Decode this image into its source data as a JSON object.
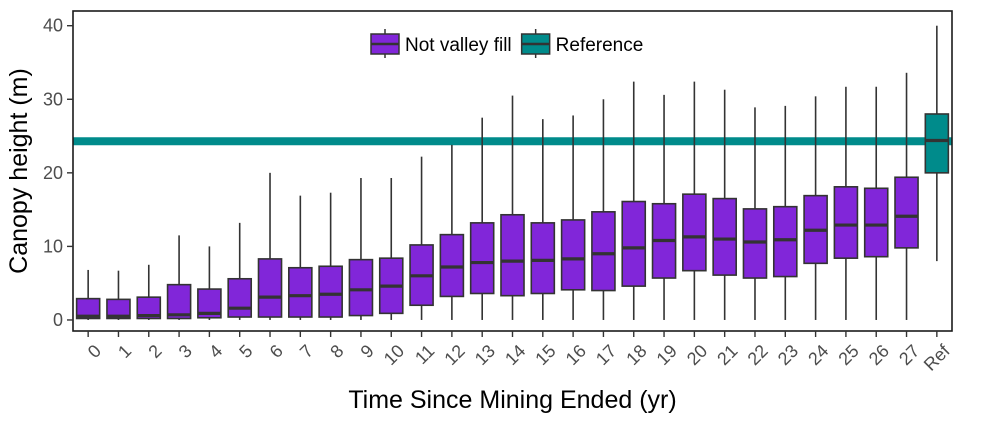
{
  "chart_data": {
    "type": "boxplot",
    "xlabel": "Time Since Mining Ended (yr)",
    "ylabel": "Canopy height (m)",
    "ylim": [
      -1.5,
      42
    ],
    "yticks": [
      0,
      10,
      20,
      30,
      40
    ],
    "grid": false,
    "legend_position": "top-center",
    "legend": [
      {
        "label": "Not valley fill",
        "color": "#8126D9"
      },
      {
        "label": "Reference",
        "color": "#008B8B"
      }
    ],
    "reference_line": {
      "y": 24.3,
      "color": "#008B8B"
    },
    "categories": [
      "0",
      "1",
      "2",
      "3",
      "4",
      "5",
      "6",
      "7",
      "8",
      "9",
      "10",
      "11",
      "12",
      "13",
      "14",
      "15",
      "16",
      "17",
      "18",
      "19",
      "20",
      "21",
      "22",
      "23",
      "24",
      "25",
      "26",
      "27",
      "Ref"
    ],
    "boxes": [
      {
        "min": 0,
        "q1": 0.2,
        "median": 0.5,
        "q3": 2.9,
        "max": 6.8,
        "group": "Not valley fill"
      },
      {
        "min": 0,
        "q1": 0.2,
        "median": 0.5,
        "q3": 2.8,
        "max": 6.7,
        "group": "Not valley fill"
      },
      {
        "min": 0,
        "q1": 0.2,
        "median": 0.6,
        "q3": 3.1,
        "max": 7.5,
        "group": "Not valley fill"
      },
      {
        "min": 0,
        "q1": 0.2,
        "median": 0.7,
        "q3": 4.8,
        "max": 11.5,
        "group": "Not valley fill"
      },
      {
        "min": 0,
        "q1": 0.3,
        "median": 0.9,
        "q3": 4.2,
        "max": 10.0,
        "group": "Not valley fill"
      },
      {
        "min": 0,
        "q1": 0.4,
        "median": 1.6,
        "q3": 5.6,
        "max": 13.2,
        "group": "Not valley fill"
      },
      {
        "min": 0,
        "q1": 0.4,
        "median": 3.1,
        "q3": 8.3,
        "max": 20.0,
        "group": "Not valley fill"
      },
      {
        "min": 0,
        "q1": 0.4,
        "median": 3.3,
        "q3": 7.1,
        "max": 16.9,
        "group": "Not valley fill"
      },
      {
        "min": 0,
        "q1": 0.4,
        "median": 3.5,
        "q3": 7.3,
        "max": 17.3,
        "group": "Not valley fill"
      },
      {
        "min": 0,
        "q1": 0.6,
        "median": 4.1,
        "q3": 8.2,
        "max": 19.3,
        "group": "Not valley fill"
      },
      {
        "min": 0,
        "q1": 0.9,
        "median": 4.6,
        "q3": 8.4,
        "max": 19.3,
        "group": "Not valley fill"
      },
      {
        "min": 0,
        "q1": 2.0,
        "median": 6.0,
        "q3": 10.2,
        "max": 22.2,
        "group": "Not valley fill"
      },
      {
        "min": 0,
        "q1": 3.2,
        "median": 7.2,
        "q3": 11.6,
        "max": 23.8,
        "group": "Not valley fill"
      },
      {
        "min": 0,
        "q1": 3.6,
        "median": 7.8,
        "q3": 13.2,
        "max": 27.5,
        "group": "Not valley fill"
      },
      {
        "min": 0,
        "q1": 3.3,
        "median": 8.0,
        "q3": 14.3,
        "max": 30.5,
        "group": "Not valley fill"
      },
      {
        "min": 0,
        "q1": 3.6,
        "median": 8.1,
        "q3": 13.2,
        "max": 27.3,
        "group": "Not valley fill"
      },
      {
        "min": 0,
        "q1": 4.1,
        "median": 8.3,
        "q3": 13.6,
        "max": 27.8,
        "group": "Not valley fill"
      },
      {
        "min": 0,
        "q1": 4.0,
        "median": 9.0,
        "q3": 14.7,
        "max": 30.0,
        "group": "Not valley fill"
      },
      {
        "min": 0,
        "q1": 4.6,
        "median": 9.8,
        "q3": 16.1,
        "max": 32.4,
        "group": "Not valley fill"
      },
      {
        "min": 0,
        "q1": 5.7,
        "median": 10.8,
        "q3": 15.8,
        "max": 30.6,
        "group": "Not valley fill"
      },
      {
        "min": 0,
        "q1": 6.7,
        "median": 11.3,
        "q3": 17.1,
        "max": 32.4,
        "group": "Not valley fill"
      },
      {
        "min": 0,
        "q1": 6.1,
        "median": 11.0,
        "q3": 16.5,
        "max": 31.3,
        "group": "Not valley fill"
      },
      {
        "min": 0,
        "q1": 5.7,
        "median": 10.6,
        "q3": 15.1,
        "max": 28.9,
        "group": "Not valley fill"
      },
      {
        "min": 0,
        "q1": 5.9,
        "median": 10.9,
        "q3": 15.4,
        "max": 29.1,
        "group": "Not valley fill"
      },
      {
        "min": 0,
        "q1": 7.7,
        "median": 12.2,
        "q3": 16.9,
        "max": 30.4,
        "group": "Not valley fill"
      },
      {
        "min": 0,
        "q1": 8.4,
        "median": 12.9,
        "q3": 18.1,
        "max": 31.7,
        "group": "Not valley fill"
      },
      {
        "min": 0,
        "q1": 8.6,
        "median": 12.9,
        "q3": 17.9,
        "max": 31.7,
        "group": "Not valley fill"
      },
      {
        "min": 0,
        "q1": 9.8,
        "median": 14.1,
        "q3": 19.4,
        "max": 33.6,
        "group": "Not valley fill"
      },
      {
        "min": 8.0,
        "q1": 20.0,
        "median": 24.4,
        "q3": 28.0,
        "max": 40.0,
        "group": "Reference"
      }
    ]
  }
}
